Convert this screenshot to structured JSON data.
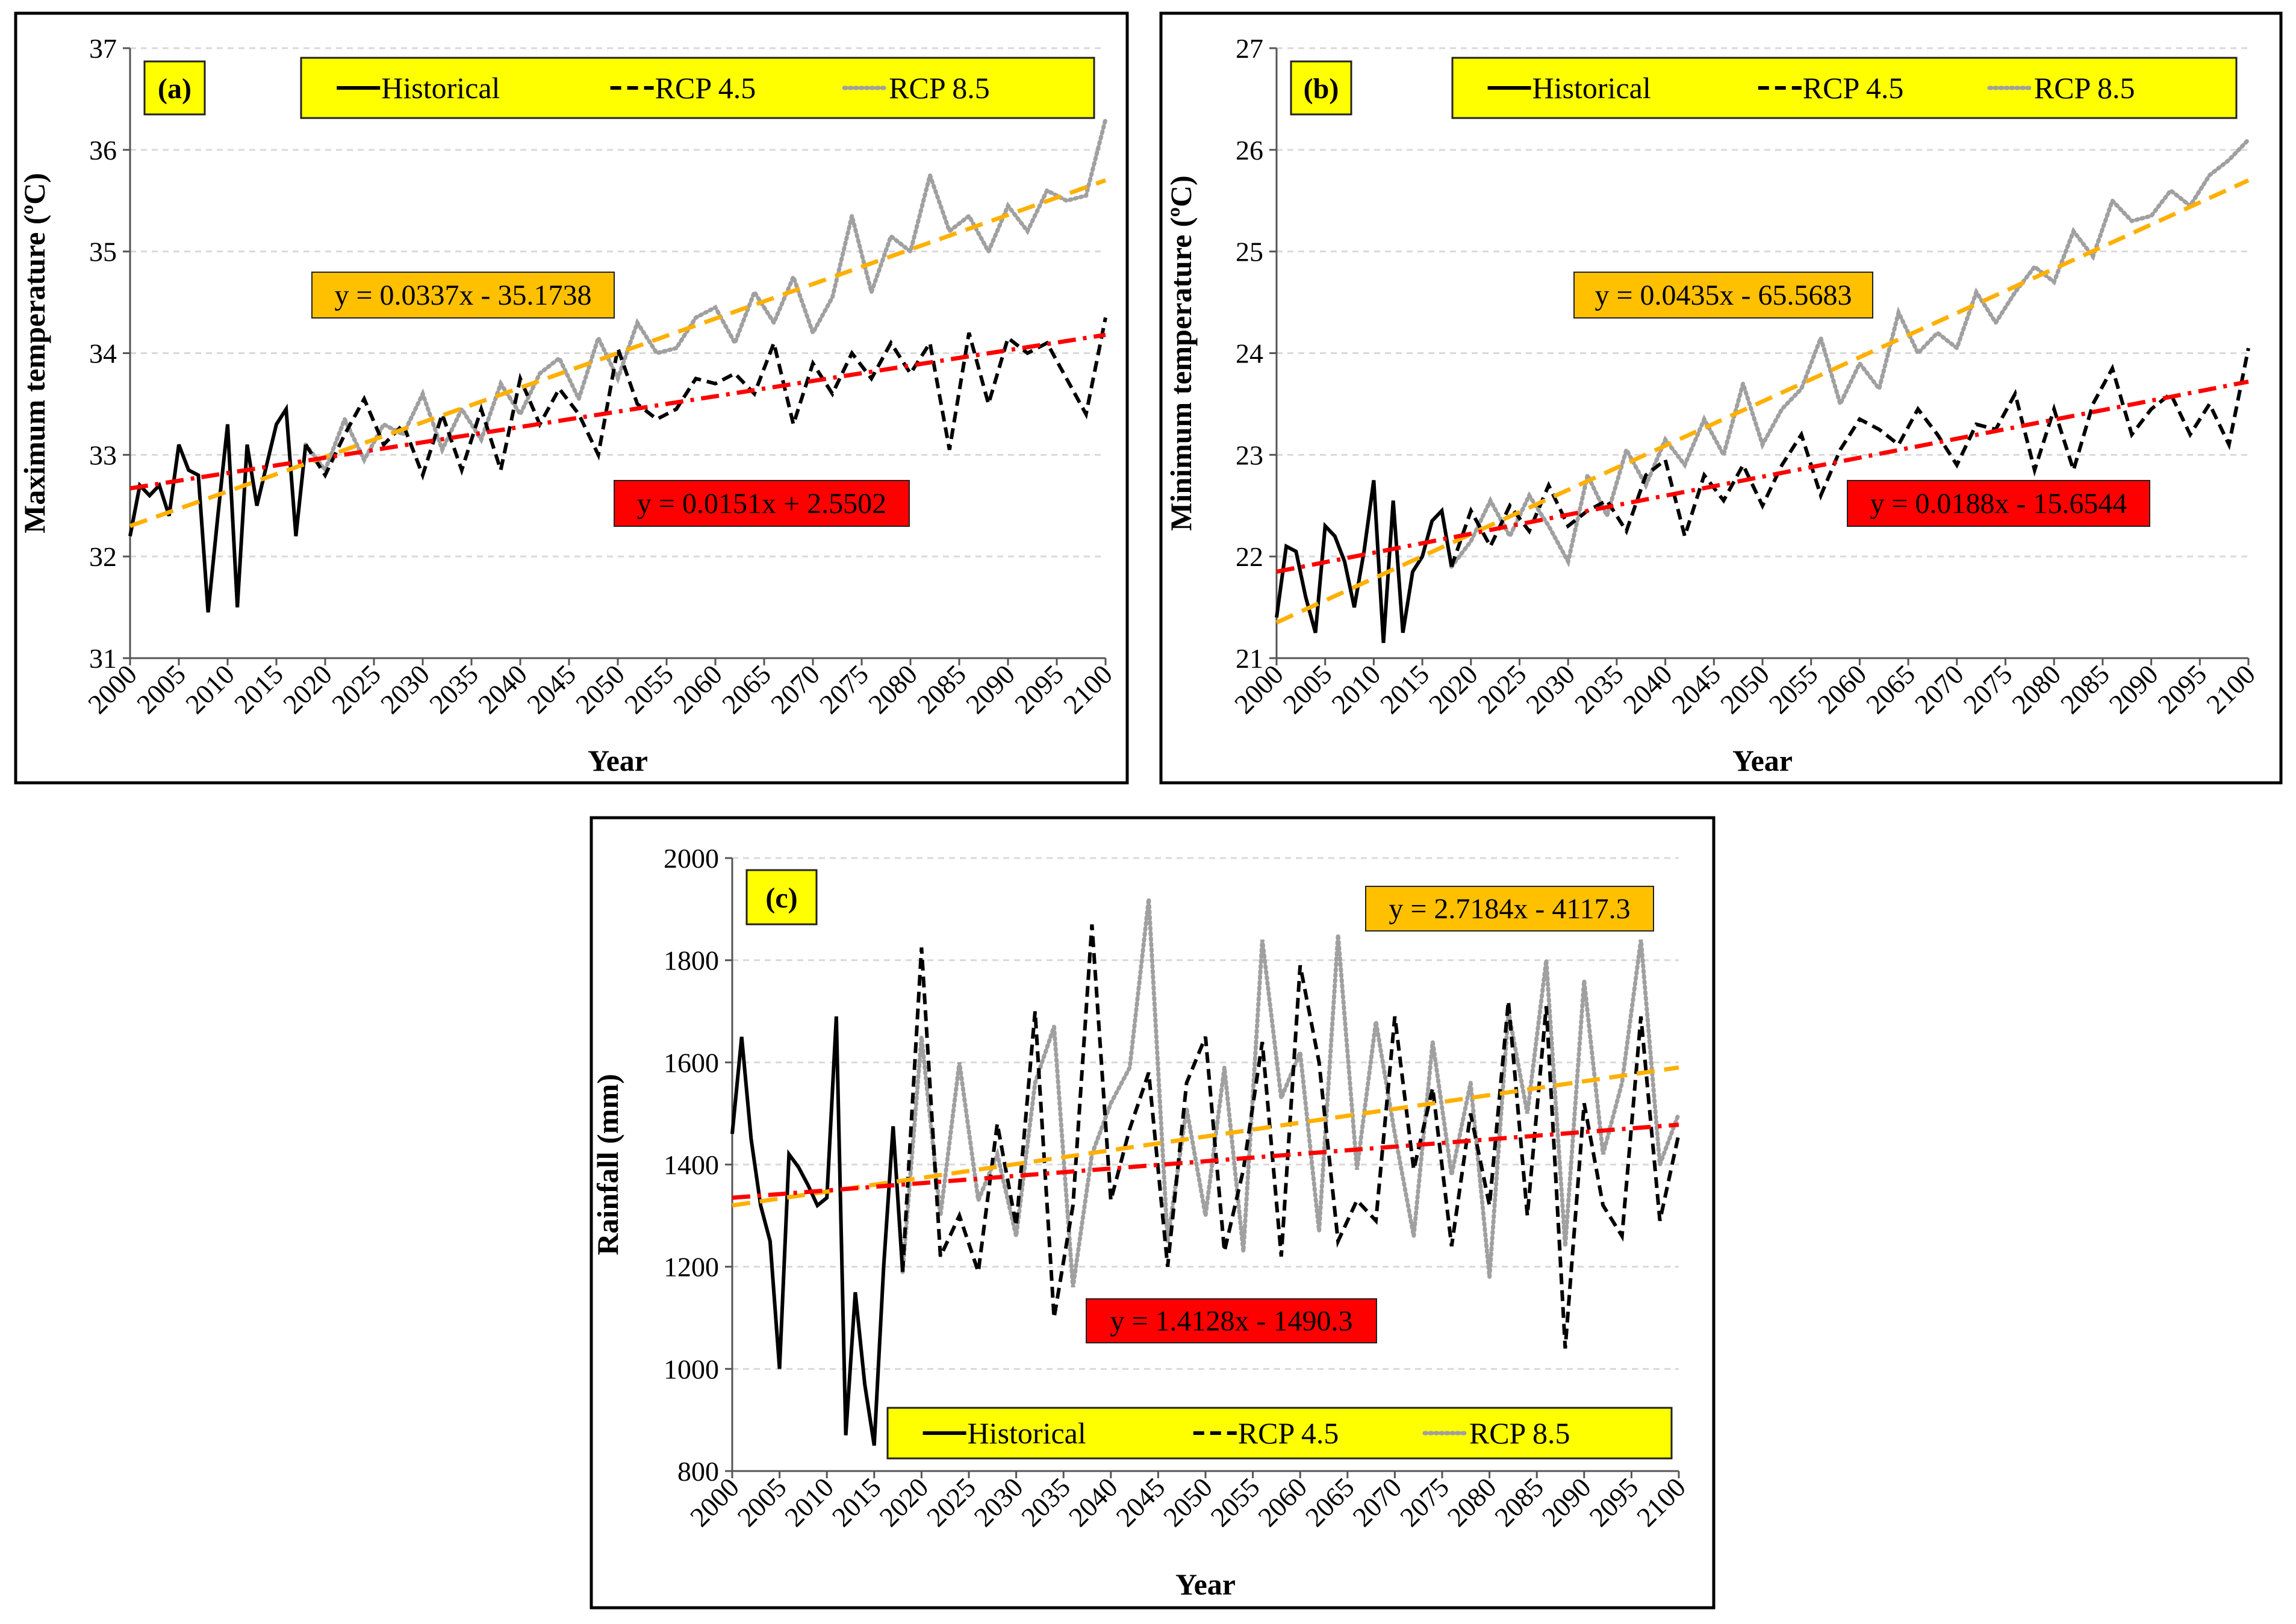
{
  "colors": {
    "historical": "#000000",
    "rcp45": "#000000",
    "rcp85": "#a0a0a0",
    "trend45": "#ff0000",
    "trend85": "#ffb000",
    "legend_bg": "#ffff00",
    "eq45_bg": "#ff0000",
    "eq85_bg": "#ffc000",
    "grid": "#d9d9d9"
  },
  "chart_data": [
    {
      "type": "line",
      "panel_label": "(a)",
      "ylabel": "Maximum temperature (ºC)",
      "xlabel": "Year",
      "xlim": [
        2000,
        2100
      ],
      "ylim": [
        31,
        37
      ],
      "yticks": [
        "31",
        "32",
        "33",
        "34",
        "35",
        "36",
        "37"
      ],
      "xticks": [
        "2000",
        "2005",
        "2010",
        "2015",
        "2020",
        "2025",
        "2030",
        "2035",
        "2040",
        "2045",
        "2050",
        "2055",
        "2060",
        "2065",
        "2070",
        "2075",
        "2080",
        "2085",
        "2090",
        "2095",
        "2100"
      ],
      "legend": [
        "Historical",
        "RCP 4.5",
        "RCP 8.5"
      ],
      "trend_rcp45": {
        "label": "y = 0.0151x + 2.5502",
        "start": [
          2000,
          32.67
        ],
        "end": [
          2100,
          34.18
        ]
      },
      "trend_rcp85": {
        "label": "y = 0.0337x - 35.1738",
        "start": [
          2000,
          32.3
        ],
        "end": [
          2100,
          35.7
        ]
      },
      "series": [
        {
          "name": "Historical",
          "x": [
            2000,
            2001,
            2002,
            2003,
            2004,
            2005,
            2006,
            2007,
            2008,
            2009,
            2010,
            2011,
            2012,
            2013,
            2014,
            2015,
            2016,
            2017,
            2018
          ],
          "values": [
            32.2,
            32.7,
            32.6,
            32.7,
            32.4,
            33.1,
            32.85,
            32.8,
            31.45,
            32.4,
            33.3,
            31.5,
            33.1,
            32.5,
            32.9,
            33.3,
            33.45,
            32.2,
            33.1
          ]
        },
        {
          "name": "RCP 4.5",
          "x": [
            2018,
            2020,
            2022,
            2024,
            2026,
            2028,
            2030,
            2032,
            2034,
            2036,
            2038,
            2040,
            2042,
            2044,
            2046,
            2048,
            2050,
            2052,
            2054,
            2056,
            2058,
            2060,
            2062,
            2064,
            2066,
            2068,
            2070,
            2072,
            2074,
            2076,
            2078,
            2080,
            2082,
            2084,
            2086,
            2088,
            2090,
            2092,
            2094,
            2096,
            2098,
            2100
          ],
          "values": [
            33.1,
            32.8,
            33.2,
            33.55,
            33.1,
            33.3,
            32.8,
            33.4,
            32.85,
            33.45,
            32.85,
            33.75,
            33.3,
            33.65,
            33.4,
            33.0,
            34.05,
            33.5,
            33.35,
            33.45,
            33.75,
            33.7,
            33.8,
            33.6,
            34.1,
            33.3,
            33.9,
            33.6,
            34.0,
            33.75,
            34.1,
            33.8,
            34.1,
            33.05,
            34.2,
            33.5,
            34.15,
            34.0,
            34.1,
            33.75,
            33.4,
            34.35
          ]
        },
        {
          "name": "RCP 8.5",
          "x": [
            2018,
            2020,
            2022,
            2024,
            2026,
            2028,
            2030,
            2032,
            2034,
            2036,
            2038,
            2040,
            2042,
            2044,
            2046,
            2048,
            2050,
            2052,
            2054,
            2056,
            2058,
            2060,
            2062,
            2064,
            2066,
            2068,
            2070,
            2072,
            2074,
            2076,
            2078,
            2080,
            2082,
            2084,
            2086,
            2088,
            2090,
            2092,
            2094,
            2096,
            2098,
            2100
          ],
          "values": [
            33.1,
            32.85,
            33.35,
            32.95,
            33.3,
            33.2,
            33.6,
            33.05,
            33.45,
            33.15,
            33.7,
            33.4,
            33.8,
            33.95,
            33.55,
            34.15,
            33.75,
            34.3,
            34.0,
            34.05,
            34.35,
            34.45,
            34.1,
            34.6,
            34.3,
            34.75,
            34.2,
            34.55,
            35.35,
            34.6,
            35.15,
            35.0,
            35.75,
            35.2,
            35.35,
            35.0,
            35.45,
            35.2,
            35.6,
            35.5,
            35.55,
            36.3
          ]
        }
      ]
    },
    {
      "type": "line",
      "panel_label": "(b)",
      "ylabel": "Minimum temperature (ºC)",
      "xlabel": "Year",
      "xlim": [
        2000,
        2100
      ],
      "ylim": [
        21,
        27
      ],
      "yticks": [
        "21",
        "22",
        "23",
        "24",
        "25",
        "26",
        "27"
      ],
      "xticks": [
        "2000",
        "2005",
        "2010",
        "2015",
        "2020",
        "2025",
        "2030",
        "2035",
        "2040",
        "2045",
        "2050",
        "2055",
        "2060",
        "2065",
        "2070",
        "2075",
        "2080",
        "2085",
        "2090",
        "2095",
        "2100"
      ],
      "legend": [
        "Historical",
        "RCP 4.5",
        "RCP 8.5"
      ],
      "trend_rcp45": {
        "label": "y = 0.0188x - 15.6544",
        "start": [
          2000,
          21.85
        ],
        "end": [
          2100,
          23.72
        ]
      },
      "trend_rcp85": {
        "label": "y = 0.0435x - 65.5683",
        "start": [
          2000,
          21.35
        ],
        "end": [
          2100,
          25.7
        ]
      },
      "series": [
        {
          "name": "Historical",
          "x": [
            2000,
            2001,
            2002,
            2003,
            2004,
            2005,
            2006,
            2007,
            2008,
            2009,
            2010,
            2011,
            2012,
            2013,
            2014,
            2015,
            2016,
            2017,
            2018
          ],
          "values": [
            21.4,
            22.1,
            22.05,
            21.6,
            21.25,
            22.3,
            22.2,
            21.95,
            21.5,
            22.05,
            22.75,
            21.15,
            22.55,
            21.25,
            21.85,
            22.0,
            22.35,
            22.45,
            21.9
          ]
        },
        {
          "name": "RCP 4.5",
          "x": [
            2018,
            2020,
            2022,
            2024,
            2026,
            2028,
            2030,
            2032,
            2034,
            2036,
            2038,
            2040,
            2042,
            2044,
            2046,
            2048,
            2050,
            2052,
            2054,
            2056,
            2058,
            2060,
            2062,
            2064,
            2066,
            2068,
            2070,
            2072,
            2074,
            2076,
            2078,
            2080,
            2082,
            2084,
            2086,
            2088,
            2090,
            2092,
            2094,
            2096,
            2098,
            2100
          ],
          "values": [
            21.9,
            22.45,
            22.1,
            22.5,
            22.25,
            22.7,
            22.3,
            22.45,
            22.55,
            22.25,
            22.8,
            22.95,
            22.2,
            22.8,
            22.55,
            22.9,
            22.5,
            22.9,
            23.2,
            22.6,
            23.05,
            23.35,
            23.25,
            23.1,
            23.45,
            23.2,
            22.9,
            23.3,
            23.25,
            23.6,
            22.85,
            23.45,
            22.85,
            23.5,
            23.85,
            23.2,
            23.45,
            23.6,
            23.2,
            23.5,
            23.1,
            24.05
          ]
        },
        {
          "name": "RCP 8.5",
          "x": [
            2018,
            2020,
            2022,
            2024,
            2026,
            2028,
            2030,
            2032,
            2034,
            2036,
            2038,
            2040,
            2042,
            2044,
            2046,
            2048,
            2050,
            2052,
            2054,
            2056,
            2058,
            2060,
            2062,
            2064,
            2066,
            2068,
            2070,
            2072,
            2074,
            2076,
            2078,
            2080,
            2082,
            2084,
            2086,
            2088,
            2090,
            2092,
            2094,
            2096,
            2098,
            2100
          ],
          "values": [
            21.9,
            22.15,
            22.55,
            22.2,
            22.6,
            22.3,
            21.95,
            22.8,
            22.4,
            23.05,
            22.7,
            23.15,
            22.9,
            23.35,
            23.0,
            23.7,
            23.1,
            23.45,
            23.65,
            24.15,
            23.5,
            23.9,
            23.65,
            24.4,
            24.0,
            24.2,
            24.05,
            24.6,
            24.3,
            24.6,
            24.85,
            24.7,
            25.2,
            24.95,
            25.5,
            25.3,
            25.35,
            25.6,
            25.45,
            25.75,
            25.9,
            26.1
          ]
        }
      ]
    },
    {
      "type": "line",
      "panel_label": "(c)",
      "ylabel": "Rainfall (mm)",
      "xlabel": "Year",
      "xlim": [
        2000,
        2100
      ],
      "ylim": [
        800,
        2000
      ],
      "yticks": [
        "800",
        "1000",
        "1200",
        "1400",
        "1600",
        "1800",
        "2000"
      ],
      "xticks": [
        "2000",
        "2005",
        "2010",
        "2015",
        "2020",
        "2025",
        "2030",
        "2035",
        "2040",
        "2045",
        "2050",
        "2055",
        "2060",
        "2065",
        "2070",
        "2075",
        "2080",
        "2085",
        "2090",
        "2095",
        "2100"
      ],
      "legend": [
        "Historical",
        "RCP 4.5",
        "RCP 8.5"
      ],
      "trend_rcp45": {
        "label": "y = 1.4128x - 1490.3",
        "start": [
          2000,
          1335
        ],
        "end": [
          2100,
          1478
        ]
      },
      "trend_rcp85": {
        "label": "y = 2.7184x - 4117.3",
        "start": [
          2000,
          1320
        ],
        "end": [
          2100,
          1590
        ]
      },
      "series": [
        {
          "name": "Historical",
          "x": [
            2000,
            2001,
            2002,
            2003,
            2004,
            2005,
            2006,
            2007,
            2008,
            2009,
            2010,
            2011,
            2012,
            2013,
            2014,
            2015,
            2016,
            2017,
            2018
          ],
          "values": [
            1460,
            1650,
            1450,
            1320,
            1250,
            1000,
            1420,
            1395,
            1360,
            1320,
            1335,
            1690,
            870,
            1150,
            970,
            850,
            1200,
            1475,
            1190
          ]
        },
        {
          "name": "RCP 4.5",
          "x": [
            2018,
            2020,
            2022,
            2024,
            2026,
            2028,
            2030,
            2032,
            2034,
            2036,
            2038,
            2040,
            2042,
            2044,
            2046,
            2048,
            2050,
            2052,
            2054,
            2056,
            2058,
            2060,
            2062,
            2064,
            2066,
            2068,
            2070,
            2072,
            2074,
            2076,
            2078,
            2080,
            2082,
            2084,
            2086,
            2088,
            2090,
            2092,
            2094,
            2096,
            2098,
            2100
          ],
          "values": [
            1190,
            1825,
            1220,
            1300,
            1190,
            1480,
            1280,
            1700,
            1100,
            1320,
            1870,
            1330,
            1470,
            1580,
            1200,
            1560,
            1650,
            1230,
            1390,
            1640,
            1220,
            1790,
            1600,
            1250,
            1330,
            1290,
            1690,
            1390,
            1550,
            1240,
            1500,
            1320,
            1720,
            1300,
            1710,
            1040,
            1520,
            1320,
            1260,
            1690,
            1290,
            1460
          ]
        },
        {
          "name": "RCP 8.5",
          "x": [
            2018,
            2020,
            2022,
            2024,
            2026,
            2028,
            2030,
            2032,
            2034,
            2036,
            2038,
            2040,
            2042,
            2044,
            2046,
            2048,
            2050,
            2052,
            2054,
            2056,
            2058,
            2060,
            2062,
            2064,
            2066,
            2068,
            2070,
            2072,
            2074,
            2076,
            2078,
            2080,
            2082,
            2084,
            2086,
            2088,
            2090,
            2092,
            2094,
            2096,
            2098,
            2100
          ],
          "values": [
            1190,
            1650,
            1300,
            1600,
            1330,
            1420,
            1260,
            1560,
            1670,
            1160,
            1420,
            1520,
            1590,
            1920,
            1250,
            1510,
            1300,
            1590,
            1230,
            1840,
            1530,
            1620,
            1270,
            1850,
            1390,
            1680,
            1460,
            1260,
            1640,
            1380,
            1560,
            1180,
            1700,
            1500,
            1800,
            1240,
            1760,
            1420,
            1560,
            1840,
            1400,
            1500
          ]
        }
      ]
    }
  ]
}
